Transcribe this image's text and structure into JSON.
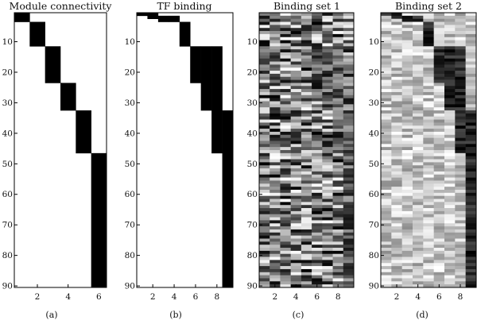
{
  "chart_data": [
    {
      "type": "heatmap",
      "title": "Module connectivity",
      "panel_label": "(a)",
      "rows": 90,
      "cols": 6,
      "yticks": [
        10,
        20,
        30,
        40,
        50,
        60,
        70,
        80,
        90
      ],
      "xticks": [
        2,
        4,
        6
      ],
      "blocks": [
        {
          "col": 1,
          "rows": [
            1,
            3
          ]
        },
        {
          "col": 2,
          "rows": [
            4,
            11
          ]
        },
        {
          "col": 3,
          "rows": [
            12,
            23
          ]
        },
        {
          "col": 4,
          "rows": [
            24,
            32
          ]
        },
        {
          "col": 5,
          "rows": [
            33,
            46
          ]
        },
        {
          "col": 6,
          "rows": [
            47,
            90
          ]
        }
      ]
    },
    {
      "type": "heatmap",
      "title": "TF binding",
      "panel_label": "(b)",
      "rows": 90,
      "cols": 9,
      "yticks": [
        10,
        20,
        30,
        40,
        50,
        60,
        70,
        80,
        90
      ],
      "xticks": [
        2,
        4,
        6,
        8
      ],
      "blocks": [
        {
          "col": 1,
          "rows": [
            1,
            1
          ]
        },
        {
          "col": 2,
          "rows": [
            1,
            2
          ]
        },
        {
          "col": 3,
          "rows": [
            2,
            3
          ]
        },
        {
          "col": 4,
          "rows": [
            2,
            3
          ]
        },
        {
          "col": 5,
          "rows": [
            4,
            11
          ]
        },
        {
          "col": 6,
          "rows": [
            12,
            23
          ]
        },
        {
          "col": 7,
          "rows": [
            12,
            32
          ]
        },
        {
          "col": 8,
          "rows": [
            12,
            46
          ]
        },
        {
          "col": 9,
          "rows": [
            33,
            90
          ]
        }
      ]
    },
    {
      "type": "heatmap",
      "title": "Binding set 1",
      "panel_label": "(c)",
      "rows": 90,
      "cols": 9,
      "yticks": [
        10,
        20,
        30,
        40,
        50,
        60,
        70,
        80,
        90
      ],
      "xticks": [
        2,
        4,
        6,
        8
      ],
      "pattern": "noisy grayscale, values 0-1",
      "seed": 7
    },
    {
      "type": "heatmap",
      "title": "Binding set 2",
      "panel_label": "(d)",
      "rows": 90,
      "cols": 9,
      "yticks": [
        10,
        20,
        30,
        40,
        50,
        60,
        70,
        80,
        90
      ],
      "xticks": [
        2,
        4,
        6,
        8
      ],
      "pattern": "mostly light, dark block structure matching TF binding",
      "seed": 13
    }
  ]
}
